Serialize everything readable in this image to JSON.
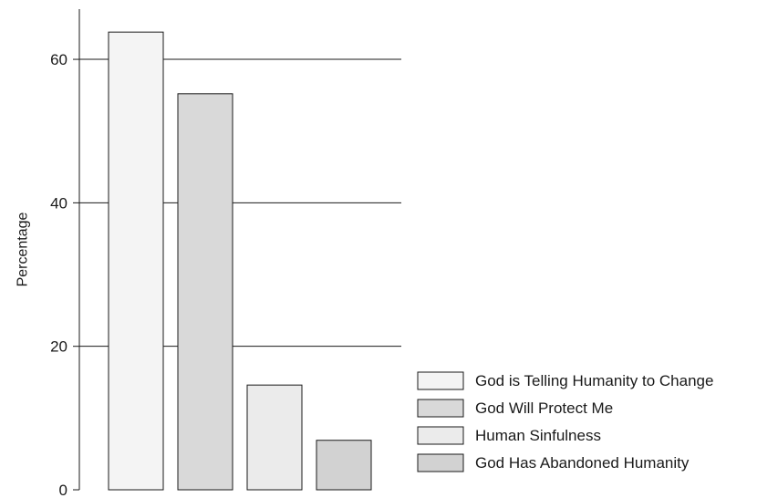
{
  "chart_data": {
    "type": "bar",
    "title": "",
    "xlabel": "",
    "ylabel": "Percentage",
    "ylim": [
      0,
      67
    ],
    "yticks": [
      0,
      20,
      40,
      60
    ],
    "grid": "horizontal at y ticks 20, 40, 60",
    "legend_position": "bottom-right",
    "categories": [
      "God is Telling Humanity to Change",
      "God Will Protect Me",
      "Human Sinfulness",
      "God Has Abandoned Humanity"
    ],
    "values": [
      63.8,
      55.2,
      14.6,
      6.9
    ],
    "colors": [
      "#f4f4f4",
      "#d9d9d9",
      "#ebebeb",
      "#d2d2d2"
    ]
  }
}
